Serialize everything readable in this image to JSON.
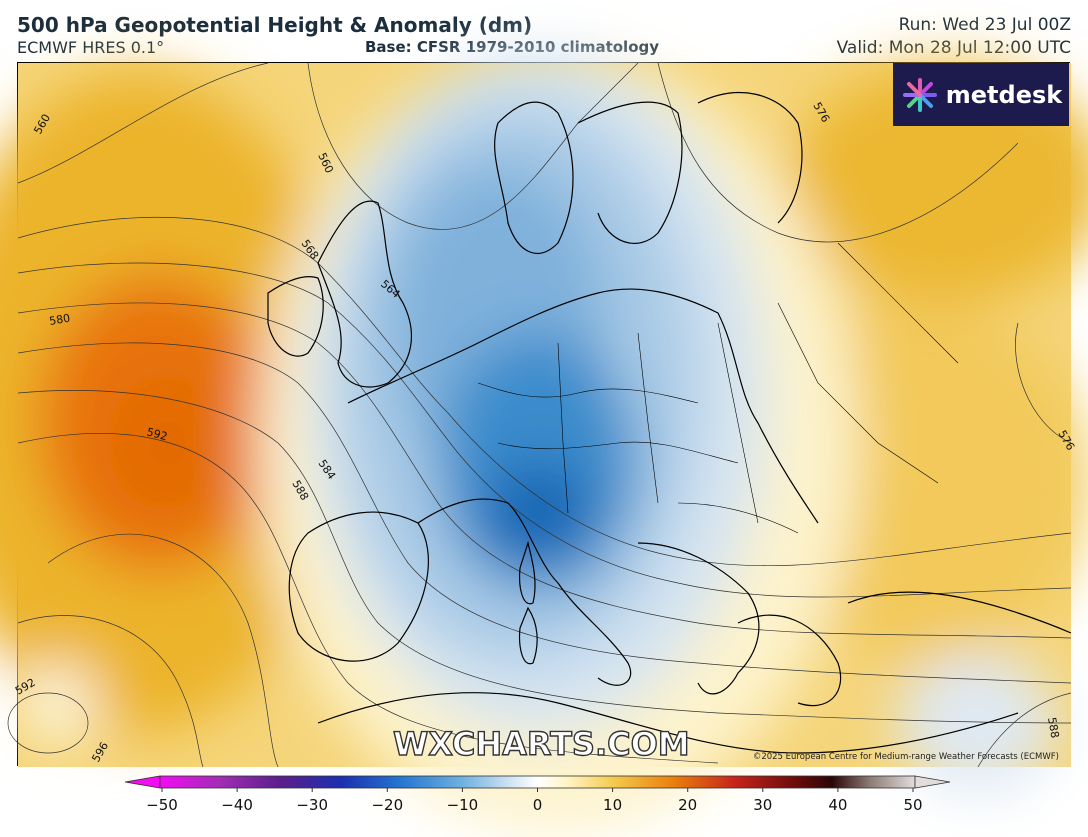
{
  "header": {
    "title": "500 hPa Geopotential Height & Anomaly (dm)",
    "subtitle": "ECMWF HRES 0.1°",
    "base": "Base: CFSR 1979-2010 climatology",
    "run": "Run: Wed 23 Jul 00Z",
    "valid": "Valid: Mon 28 Jul 12:00 UTC"
  },
  "logo": {
    "text": "metdesk",
    "icon": "metdesk-flower-icon"
  },
  "watermark": "WXCHARTS.COM",
  "copyright": "©2025 European Centre for Medium-range Weather Forecasts (ECMWF)",
  "contour_labels": [
    "560",
    "560",
    "568",
    "564",
    "580",
    "592",
    "584",
    "588",
    "576",
    "592",
    "596",
    "588",
    "576"
  ],
  "colorbar": {
    "ticks": [
      "−50",
      "−40",
      "−30",
      "−20",
      "−10",
      "0",
      "10",
      "20",
      "30",
      "40",
      "50"
    ],
    "min": -50,
    "max": 50
  },
  "colors": {
    "strong_negative": "#1a6fbf",
    "weak_negative": "#e6eff7",
    "neutral": "#fffbe6",
    "positive": "#f0bf38",
    "strong_positive": "#e8730a",
    "logo_bg": "#1d1a4e"
  }
}
